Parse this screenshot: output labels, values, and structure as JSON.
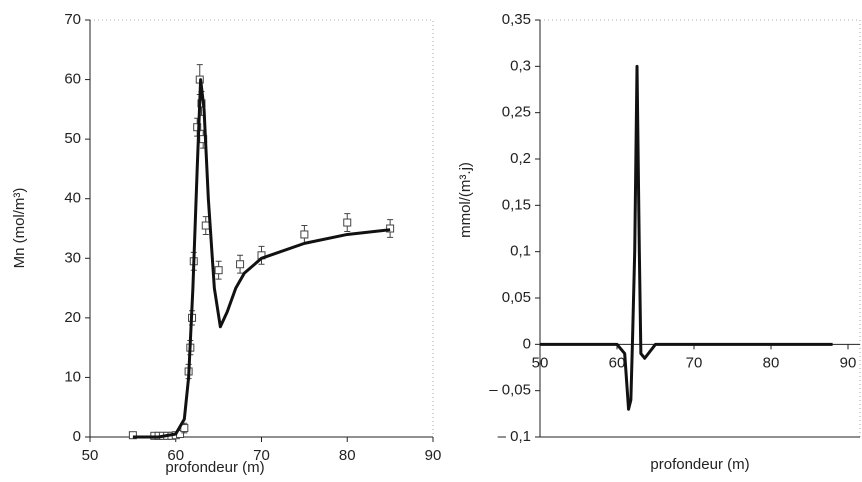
{
  "chart_data": [
    {
      "type": "scatter",
      "x_label": "profondeur (m)",
      "y_label": "Mn (mol/m³)",
      "xlim": [
        50,
        90
      ],
      "xticks": [
        50,
        60,
        70,
        80,
        90
      ],
      "ylim": [
        0,
        70
      ],
      "yticks": [
        0,
        10,
        20,
        30,
        40,
        50,
        60,
        70
      ],
      "color": "#111111",
      "series": [
        {
          "type": "scatter",
          "x": [
            55,
            57.5,
            58,
            58.5,
            59,
            59.5,
            60,
            60.5,
            61,
            61.5,
            61.7,
            61.9,
            62.1,
            62.5,
            62.8,
            63,
            63.2,
            63.5,
            65,
            67.5,
            70,
            75,
            80,
            85
          ],
          "values": [
            0.3,
            0.2,
            0.2,
            0.2,
            0.2,
            0.2,
            0.3,
            0.5,
            1.5,
            11,
            15,
            20,
            29.5,
            52,
            60,
            56,
            50,
            35.5,
            28,
            29,
            30.5,
            34,
            36,
            35
          ],
          "errors": [
            0.3,
            0.3,
            0.3,
            0.3,
            0.3,
            0.3,
            0.3,
            0.5,
            0.8,
            1.2,
            1.2,
            1.2,
            1.5,
            1.5,
            2.5,
            2,
            1.5,
            1.5,
            1.5,
            1.5,
            1.5,
            1.5,
            1.5,
            1.5
          ]
        },
        {
          "type": "line",
          "x": [
            55,
            58,
            60,
            61,
            61.5,
            62,
            62.5,
            62.9,
            63.3,
            63.8,
            64.5,
            65.2,
            66,
            67,
            68,
            70,
            75,
            80,
            85
          ],
          "values": [
            0,
            0,
            0.5,
            3,
            10,
            25,
            45,
            60,
            55,
            40,
            25,
            18.5,
            21,
            25,
            27.5,
            30,
            32.5,
            34,
            34.8
          ]
        }
      ]
    },
    {
      "type": "line",
      "x_label": "profondeur (m)",
      "y_label": "mmol/(m³.j)",
      "xlim": [
        50,
        90
      ],
      "xticks": [
        50,
        60,
        70,
        80,
        90
      ],
      "ylim": [
        -0.1,
        0.35
      ],
      "yticks": [
        {
          "value": -0.1,
          "label": "– 0,1"
        },
        {
          "value": -0.05,
          "label": "– 0,05"
        },
        0,
        {
          "value": 0.05,
          "label": "0,05"
        },
        {
          "value": 0.1,
          "label": "0,1"
        },
        {
          "value": 0.15,
          "label": "0,15"
        },
        {
          "value": 0.2,
          "label": "0,2"
        },
        {
          "value": 0.25,
          "label": "0,25"
        },
        {
          "value": 0.3,
          "label": "0,3"
        },
        {
          "value": 0.35,
          "label": "0,35"
        }
      ],
      "color": "#111111",
      "series": [
        {
          "type": "line",
          "x": [
            50,
            60,
            61,
            61.5,
            61.8,
            62,
            62.3,
            62.6,
            62.9,
            63.1,
            63.6,
            65,
            88
          ],
          "values": [
            0,
            0,
            -0.01,
            -0.07,
            -0.06,
            0,
            0.1,
            0.3,
            0.1,
            -0.01,
            -0.015,
            0,
            0
          ]
        }
      ]
    }
  ]
}
